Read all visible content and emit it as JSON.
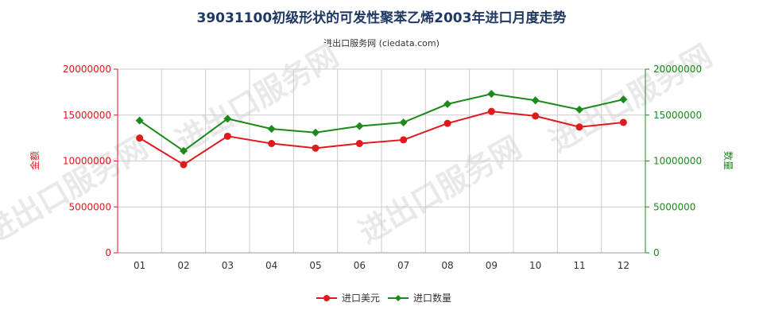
{
  "title": "39031100初级形状的可发性聚苯乙烯2003年进口月度走势",
  "subtitle": "进出口服务网 (ciedata.com)",
  "watermark": "进出口服务网",
  "colors": {
    "left_axis": "#e0191b",
    "right_axis": "#1a8a1a",
    "grid": "#cccccc",
    "title": "#1f3864"
  },
  "chart_data": {
    "type": "line",
    "categories": [
      "01",
      "02",
      "03",
      "04",
      "05",
      "06",
      "07",
      "08",
      "09",
      "10",
      "11",
      "12"
    ],
    "y_left": {
      "label": "金额",
      "ylim": [
        0,
        20000000
      ],
      "ticks": [
        "0",
        "5000000",
        "10000000",
        "15000000",
        "20000000"
      ]
    },
    "y_right": {
      "label": "数量",
      "ylim": [
        0,
        20000000
      ],
      "ticks": [
        "0",
        "5000000",
        "10000000",
        "15000000",
        "20000000"
      ]
    },
    "series": [
      {
        "name": "进口美元",
        "axis": "left",
        "color": "#e0191b",
        "marker": "circle",
        "values": [
          12500000,
          9600000,
          12700000,
          11900000,
          11400000,
          11900000,
          12300000,
          14100000,
          15400000,
          14900000,
          13700000,
          14200000
        ]
      },
      {
        "name": "进口数量",
        "axis": "right",
        "color": "#1a8a1a",
        "marker": "diamond",
        "values": [
          14400000,
          11100000,
          14600000,
          13500000,
          13100000,
          13800000,
          14200000,
          16200000,
          17300000,
          16600000,
          15600000,
          16700000
        ]
      }
    ],
    "grid": true,
    "legend_position": "bottom-center"
  }
}
